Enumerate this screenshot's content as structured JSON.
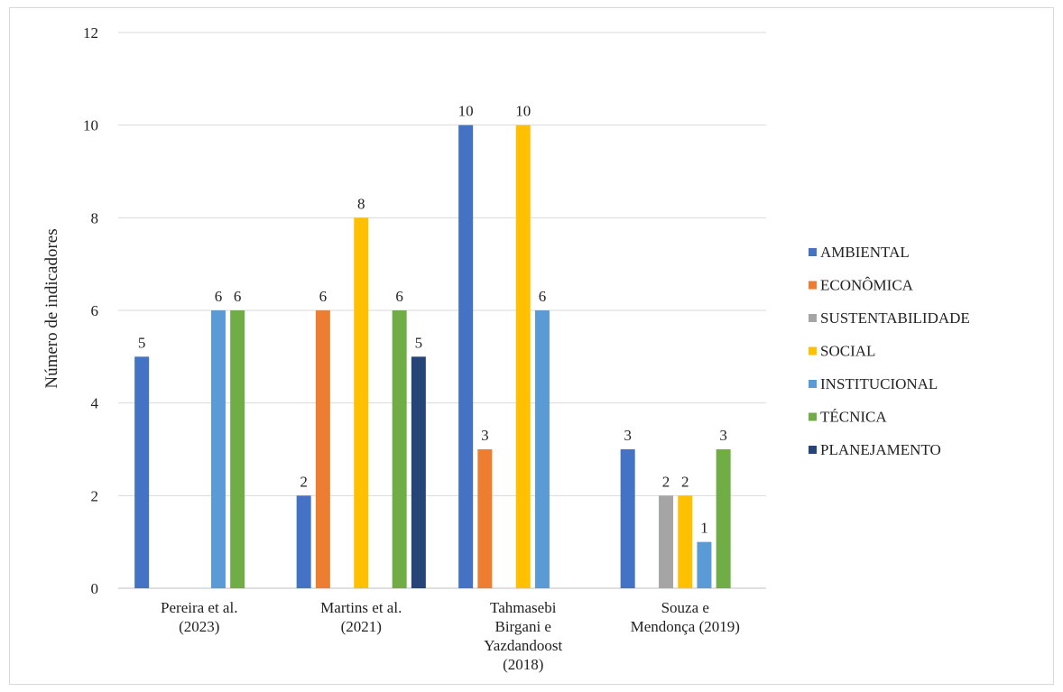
{
  "chart_data": {
    "type": "bar",
    "ylabel": "Número de indicadores",
    "ylim": [
      0,
      12
    ],
    "yticks": [
      0,
      2,
      4,
      6,
      8,
      10,
      12
    ],
    "grid": true,
    "legend_position": "right",
    "categories": [
      [
        "Pereira et al.",
        "(2023)"
      ],
      [
        "Martins et al.",
        "(2021)"
      ],
      [
        "Tahmasebi",
        "Birgani e",
        "Yazdandoost",
        "(2018)"
      ],
      [
        "Souza e",
        "Mendonça (2019)"
      ]
    ],
    "series": [
      {
        "name": "AMBIENTAL",
        "color": "#4472C4",
        "values": [
          5,
          2,
          10,
          3
        ]
      },
      {
        "name": "ECONÔMICA",
        "color": "#ED7D31",
        "values": [
          null,
          6,
          3,
          null
        ]
      },
      {
        "name": "SUSTENTABILIDADE",
        "color": "#A5A5A5",
        "values": [
          null,
          null,
          null,
          2
        ]
      },
      {
        "name": "SOCIAL",
        "color": "#FFC000",
        "values": [
          null,
          8,
          10,
          2
        ]
      },
      {
        "name": "INSTITUCIONAL",
        "color": "#5B9BD5",
        "values": [
          6,
          null,
          6,
          1
        ]
      },
      {
        "name": "TÉCNICA",
        "color": "#70AD47",
        "values": [
          6,
          6,
          null,
          3
        ]
      },
      {
        "name": "PLANEJAMENTO",
        "color": "#264478",
        "values": [
          null,
          5,
          null,
          null
        ]
      }
    ]
  }
}
